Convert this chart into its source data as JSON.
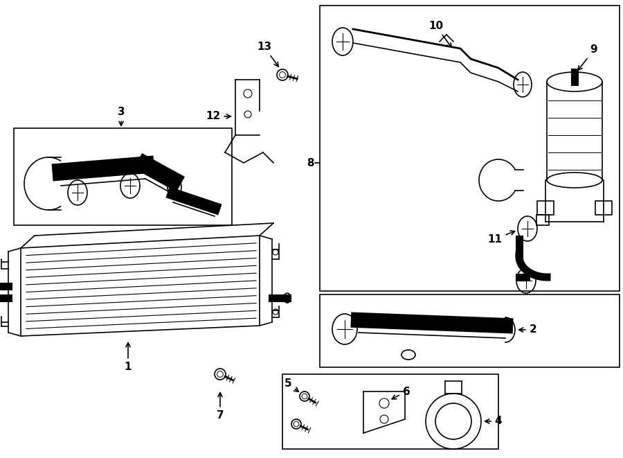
{
  "bg_color": "#ffffff",
  "line_color": "#000000",
  "lw": 1.2,
  "lw_thick": 2.0,
  "fontsize": 11
}
